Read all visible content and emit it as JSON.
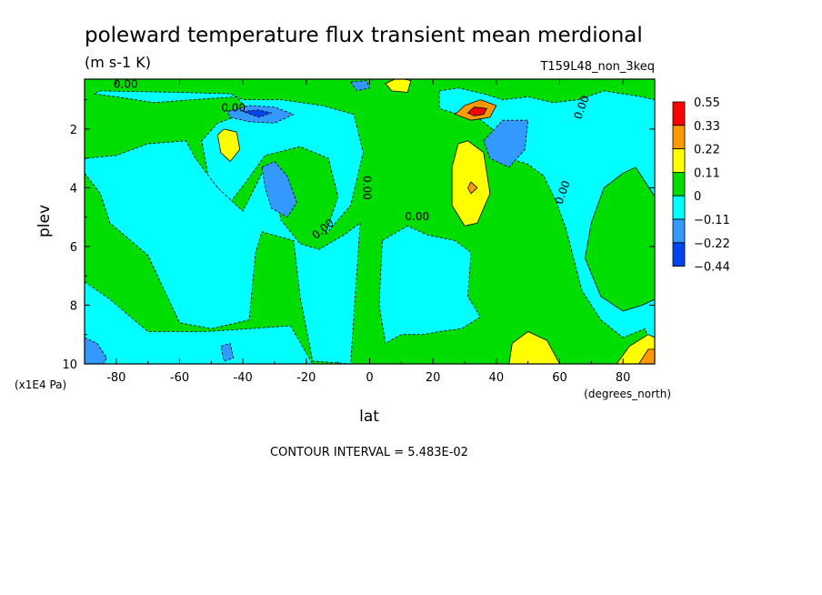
{
  "chart_data": {
    "type": "heatmap",
    "title": "poleward temperature flux transient mean merdional",
    "units": "(m s-1 K)",
    "run_label": "T159L48_non_3keq",
    "xlabel": "lat",
    "xunits": "(degrees_north)",
    "ylabel": "plev",
    "yunits": "(x1E4 Pa)",
    "xlim": [
      -90,
      90
    ],
    "ylim": [
      10,
      0.3
    ],
    "xticks": [
      {
        "v": -80,
        "label": "-80"
      },
      {
        "v": -60,
        "label": "-60"
      },
      {
        "v": -40,
        "label": "-40"
      },
      {
        "v": -20,
        "label": "-20"
      },
      {
        "v": 0,
        "label": "0"
      },
      {
        "v": 20,
        "label": "20"
      },
      {
        "v": 40,
        "label": "40"
      },
      {
        "v": 60,
        "label": "60"
      },
      {
        "v": 80,
        "label": "80"
      }
    ],
    "yticks": [
      {
        "v": 2,
        "label": "2"
      },
      {
        "v": 4,
        "label": "4"
      },
      {
        "v": 6,
        "label": "6"
      },
      {
        "v": 8,
        "label": "8"
      },
      {
        "v": 10,
        "label": "10"
      }
    ],
    "contour_interval_text": "CONTOUR INTERVAL = 5.483E-02",
    "zero_contour_label": "0.00",
    "colorbar": {
      "labels": [
        "0.55",
        "0.33",
        "0.22",
        "0.11",
        "0",
        "−0.11",
        "−0.22",
        "−0.44"
      ],
      "colors": [
        "#ff0000",
        "#ff9900",
        "#ffff00",
        "#00dd00",
        "#00ffff",
        "#3399ff",
        "#0044ee"
      ]
    },
    "background_value_color": "#00dd00",
    "regions": [
      {
        "color": "#00ffff",
        "points": [
          [
            -87,
            0.8
          ],
          [
            -80,
            0.9
          ],
          [
            -68,
            1.1
          ],
          [
            -56,
            1.0
          ],
          [
            -42,
            0.9
          ],
          [
            -38,
            1.4
          ],
          [
            -48,
            1.8
          ],
          [
            -53,
            2.4
          ],
          [
            -51,
            3.6
          ],
          [
            -44,
            4.5
          ],
          [
            -39,
            3.8
          ],
          [
            -33,
            2.9
          ],
          [
            -22,
            2.6
          ],
          [
            -13,
            3.0
          ],
          [
            -10,
            4.3
          ],
          [
            -14,
            5.6
          ],
          [
            -6,
            4.6
          ],
          [
            -2,
            2.8
          ],
          [
            -5,
            1.5
          ],
          [
            -15,
            1.2
          ],
          [
            -28,
            1.0
          ],
          [
            -40,
            1.0
          ],
          [
            -44,
            0.8
          ],
          [
            -60,
            0.75
          ],
          [
            -85,
            0.7
          ]
        ]
      },
      {
        "color": "#00ffff",
        "points": [
          [
            -90,
            3.5
          ],
          [
            -85,
            4.2
          ],
          [
            -82,
            5.2
          ],
          [
            -70,
            6.3
          ],
          [
            -60,
            8.6
          ],
          [
            -50,
            8.8
          ],
          [
            -38,
            8.5
          ],
          [
            -36,
            6.2
          ],
          [
            -34,
            5.5
          ],
          [
            -24,
            5.8
          ],
          [
            -22,
            7.7
          ],
          [
            -18,
            9.9
          ],
          [
            -6,
            10
          ],
          [
            -3,
            5.2
          ],
          [
            -8,
            5.6
          ],
          [
            -16,
            6.1
          ],
          [
            -22,
            5.9
          ],
          [
            -28,
            5.1
          ],
          [
            -30,
            4.0
          ],
          [
            -34,
            3.5
          ],
          [
            -40,
            4.8
          ],
          [
            -48,
            4.0
          ],
          [
            -55,
            3.0
          ],
          [
            -58,
            2.4
          ],
          [
            -70,
            2.5
          ],
          [
            -80,
            2.9
          ],
          [
            -90,
            3.0
          ]
        ]
      },
      {
        "color": "#00ffff",
        "points": [
          [
            -90,
            7.2
          ],
          [
            -82,
            7.8
          ],
          [
            -70,
            8.9
          ],
          [
            -52,
            8.9
          ],
          [
            -38,
            8.8
          ],
          [
            -25,
            8.7
          ],
          [
            -18,
            10
          ],
          [
            -90,
            10
          ]
        ]
      },
      {
        "color": "#00ffff",
        "points": [
          [
            4,
            5.8
          ],
          [
            12,
            5.3
          ],
          [
            18,
            5.6
          ],
          [
            27,
            5.8
          ],
          [
            32,
            6.2
          ],
          [
            31,
            7.7
          ],
          [
            35,
            8.4
          ],
          [
            29,
            8.8
          ],
          [
            22,
            8.9
          ],
          [
            17,
            9.0
          ],
          [
            10,
            9.0
          ],
          [
            5,
            9.3
          ],
          [
            3,
            8.0
          ]
        ]
      },
      {
        "color": "#00ffff",
        "points": [
          [
            22,
            0.7
          ],
          [
            28,
            0.6
          ],
          [
            36,
            0.8
          ],
          [
            42,
            1.0
          ],
          [
            50,
            0.9
          ],
          [
            58,
            1.1
          ],
          [
            66,
            1.0
          ],
          [
            74,
            0.7
          ],
          [
            86,
            0.9
          ],
          [
            90,
            1.0
          ],
          [
            90,
            9.8
          ],
          [
            87,
            8.8
          ],
          [
            80,
            9.1
          ],
          [
            73,
            8.5
          ],
          [
            67,
            7.5
          ],
          [
            62,
            5.4
          ],
          [
            59,
            4.5
          ],
          [
            55,
            3.6
          ],
          [
            50,
            3.2
          ],
          [
            44,
            3.0
          ],
          [
            40,
            2.1
          ],
          [
            34,
            1.6
          ],
          [
            28,
            1.5
          ],
          [
            22,
            1.3
          ]
        ]
      },
      {
        "color": "#00dd00",
        "points": [
          [
            74,
            4.0
          ],
          [
            70,
            5.2
          ],
          [
            68,
            6.4
          ],
          [
            73,
            7.7
          ],
          [
            80,
            8.2
          ],
          [
            86,
            8.0
          ],
          [
            90,
            7.8
          ],
          [
            90,
            4.3
          ],
          [
            84,
            3.3
          ],
          [
            80,
            3.5
          ]
        ]
      },
      {
        "color": "#3399ff",
        "points": [
          [
            -45,
            1.4
          ],
          [
            -38,
            1.2
          ],
          [
            -30,
            1.25
          ],
          [
            -24,
            1.5
          ],
          [
            -30,
            1.8
          ],
          [
            -38,
            1.75
          ],
          [
            -44,
            1.6
          ]
        ]
      },
      {
        "color": "#0044ee",
        "points": [
          [
            -40,
            1.4
          ],
          [
            -35,
            1.35
          ],
          [
            -31,
            1.45
          ],
          [
            -35,
            1.6
          ]
        ]
      },
      {
        "color": "#3399ff",
        "points": [
          [
            -34,
            3.3
          ],
          [
            -30,
            3.1
          ],
          [
            -26,
            3.6
          ],
          [
            -23,
            4.5
          ],
          [
            -26,
            5.0
          ],
          [
            -31,
            4.7
          ],
          [
            -33,
            4.0
          ]
        ]
      },
      {
        "color": "#3399ff",
        "points": [
          [
            36,
            2.4
          ],
          [
            42,
            1.7
          ],
          [
            50,
            1.7
          ],
          [
            49,
            2.7
          ],
          [
            44,
            3.3
          ],
          [
            38,
            3.0
          ]
        ]
      },
      {
        "color": "#3399ff",
        "points": [
          [
            -6,
            0.4
          ],
          [
            -1,
            0.35
          ],
          [
            0,
            0.6
          ],
          [
            -4,
            0.7
          ]
        ]
      },
      {
        "color": "#3399ff",
        "points": [
          [
            -90,
            9.1
          ],
          [
            -86,
            9.3
          ],
          [
            -83,
            9.8
          ],
          [
            -84,
            10
          ],
          [
            -90,
            10
          ]
        ]
      },
      {
        "color": "#3399ff",
        "points": [
          [
            -47,
            9.4
          ],
          [
            -44,
            9.3
          ],
          [
            -43,
            9.8
          ],
          [
            -46,
            9.9
          ]
        ]
      },
      {
        "color": "#ffff00",
        "points": [
          [
            -48,
            2.2
          ],
          [
            -46,
            2.0
          ],
          [
            -42,
            2.1
          ],
          [
            -41,
            2.7
          ],
          [
            -44,
            3.1
          ],
          [
            -47,
            2.8
          ]
        ]
      },
      {
        "color": "#ffff00",
        "points": [
          [
            5,
            0.45
          ],
          [
            9,
            0.25
          ],
          [
            13,
            0.35
          ],
          [
            12,
            0.75
          ],
          [
            7,
            0.7
          ]
        ]
      },
      {
        "color": "#ffff00",
        "points": [
          [
            26,
            3.3
          ],
          [
            28,
            2.5
          ],
          [
            31,
            2.4
          ],
          [
            36,
            2.8
          ],
          [
            38,
            4.2
          ],
          [
            34,
            5.2
          ],
          [
            30,
            5.3
          ],
          [
            26,
            4.6
          ]
        ]
      },
      {
        "color": "#ff9900",
        "points": [
          [
            31,
            4.0
          ],
          [
            32,
            3.8
          ],
          [
            34,
            4.0
          ],
          [
            32,
            4.2
          ]
        ]
      },
      {
        "color": "#ffff00",
        "points": [
          [
            44,
            10
          ],
          [
            45,
            9.3
          ],
          [
            50,
            8.9
          ],
          [
            56,
            9.2
          ],
          [
            60,
            10
          ]
        ]
      },
      {
        "color": "#ffff00",
        "points": [
          [
            78,
            10
          ],
          [
            82,
            9.4
          ],
          [
            88,
            9.0
          ],
          [
            90,
            9.1
          ],
          [
            90,
            10
          ]
        ]
      },
      {
        "color": "#ff9900",
        "points": [
          [
            85,
            10
          ],
          [
            88,
            9.5
          ],
          [
            90,
            9.5
          ],
          [
            90,
            10
          ]
        ]
      },
      {
        "color": "#ff9900",
        "points": [
          [
            27,
            1.5
          ],
          [
            30,
            1.2
          ],
          [
            35,
            1.0
          ],
          [
            40,
            1.2
          ],
          [
            38,
            1.6
          ],
          [
            32,
            1.7
          ]
        ]
      },
      {
        "color": "#ff0000",
        "points": [
          [
            31,
            1.45
          ],
          [
            33,
            1.25
          ],
          [
            37,
            1.3
          ],
          [
            36,
            1.5
          ],
          [
            33,
            1.55
          ]
        ]
      }
    ]
  }
}
